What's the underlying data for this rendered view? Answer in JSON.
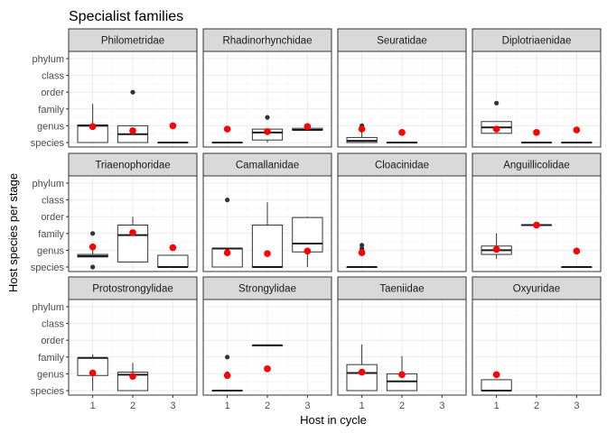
{
  "chart_data": {
    "type": "boxplot",
    "title": "Specialist families",
    "xlabel": "Host in cycle",
    "ylabel": "Host species per stage",
    "x_categories": [
      "1",
      "2",
      "3"
    ],
    "y_categories": [
      "species",
      "genus",
      "family",
      "order",
      "class",
      "phylum"
    ],
    "ylim": [
      1,
      6
    ],
    "colors": {
      "mean": "#ff0000",
      "outlier": "#333333",
      "strip": "#d9d9d9"
    },
    "panels": [
      {
        "name": "Philometridae",
        "boxes": [
          {
            "x": 1,
            "q1": 1,
            "median": 2,
            "q3": 2.05,
            "wlo": 1,
            "whi": 3.3,
            "mean": 1.95,
            "outliers": []
          },
          {
            "x": 2,
            "q1": 1,
            "median": 1.5,
            "q3": 2,
            "wlo": 1,
            "whi": 2,
            "mean": 1.7,
            "outliers": [
              4
            ]
          },
          {
            "x": 3,
            "q1": 1,
            "median": 1,
            "q3": 1,
            "wlo": 1,
            "whi": 1,
            "mean": 2,
            "outliers": []
          }
        ]
      },
      {
        "name": "Rhadinorhynchidae",
        "boxes": [
          {
            "x": 1,
            "q1": 1,
            "median": 1,
            "q3": 1,
            "wlo": 1,
            "whi": 1,
            "mean": 1.8,
            "outliers": []
          },
          {
            "x": 2,
            "q1": 1.15,
            "median": 1.6,
            "q3": 1.8,
            "wlo": 1,
            "whi": 1.8,
            "mean": 1.65,
            "outliers": [
              2.5
            ]
          },
          {
            "x": 3,
            "q1": 1.75,
            "median": 1.75,
            "q3": 1.85,
            "wlo": 1.75,
            "whi": 1.85,
            "mean": 1.95,
            "outliers": []
          }
        ]
      },
      {
        "name": "Seuratidae",
        "boxes": [
          {
            "x": 1,
            "q1": 1,
            "median": 1.1,
            "q3": 1.3,
            "wlo": 1,
            "whi": 1.8,
            "mean": 1.8,
            "outliers": [
              2
            ]
          },
          {
            "x": 2,
            "q1": 1,
            "median": 1,
            "q3": 1,
            "wlo": 1,
            "whi": 1,
            "mean": 1.6,
            "outliers": []
          }
        ]
      },
      {
        "name": "Diplotriaenidae",
        "boxes": [
          {
            "x": 1,
            "q1": 1.55,
            "median": 1.9,
            "q3": 2.25,
            "wlo": 1.55,
            "whi": 2.25,
            "mean": 1.8,
            "outliers": [
              3.35
            ]
          },
          {
            "x": 2,
            "q1": 1,
            "median": 1,
            "q3": 1,
            "wlo": 1,
            "whi": 1,
            "mean": 1.6,
            "outliers": []
          },
          {
            "x": 3,
            "q1": 1,
            "median": 1,
            "q3": 1,
            "wlo": 1,
            "whi": 1,
            "mean": 1.75,
            "outliers": []
          }
        ]
      },
      {
        "name": "Triaenophoridae",
        "boxes": [
          {
            "x": 1,
            "q1": 1.6,
            "median": 1.65,
            "q3": 1.75,
            "wlo": 1.6,
            "whi": 2,
            "mean": 2.2,
            "outliers": [
              1,
              3
            ]
          },
          {
            "x": 2,
            "q1": 1.3,
            "median": 2.9,
            "q3": 3.5,
            "wlo": 1.3,
            "whi": 4,
            "mean": 3.05,
            "outliers": []
          },
          {
            "x": 3,
            "q1": 1,
            "median": 1,
            "q3": 1.7,
            "wlo": 1,
            "whi": 1.7,
            "mean": 2.15,
            "outliers": []
          }
        ]
      },
      {
        "name": "Camallanidae",
        "boxes": [
          {
            "x": 1,
            "q1": 1,
            "median": 2.1,
            "q3": 2.1,
            "wlo": 1,
            "whi": 2.1,
            "mean": 1.85,
            "outliers": [
              5
            ]
          },
          {
            "x": 2,
            "q1": 1,
            "median": 1,
            "q3": 3.5,
            "wlo": 1,
            "whi": 4.85,
            "mean": 1.8,
            "outliers": []
          },
          {
            "x": 3,
            "q1": 1.9,
            "median": 2.4,
            "q3": 3.95,
            "wlo": 1,
            "whi": 4,
            "mean": 1.95,
            "outliers": []
          }
        ]
      },
      {
        "name": "Cloacinidae",
        "boxes": [
          {
            "x": 1,
            "q1": 1,
            "median": 1,
            "q3": 1,
            "wlo": 1,
            "whi": 1,
            "mean": 1.85,
            "outliers": [
              2,
              2.1,
              2.3
            ]
          }
        ]
      },
      {
        "name": "Anguillicolidae",
        "boxes": [
          {
            "x": 1,
            "q1": 1.75,
            "median": 2,
            "q3": 2.25,
            "wlo": 1.5,
            "whi": 3,
            "mean": 2.05,
            "outliers": []
          },
          {
            "x": 2,
            "q1": 3.5,
            "median": 3.5,
            "q3": 3.5,
            "wlo": 3.5,
            "whi": 3.5,
            "mean": 3.5,
            "outliers": []
          },
          {
            "x": 3,
            "q1": 1,
            "median": 1,
            "q3": 1,
            "wlo": 1,
            "whi": 1,
            "mean": 1.95,
            "outliers": []
          }
        ]
      },
      {
        "name": "Protostrongylidae",
        "boxes": [
          {
            "x": 1,
            "q1": 1.9,
            "median": 2.95,
            "q3": 2.95,
            "wlo": 1,
            "whi": 3.15,
            "mean": 2.05,
            "outliers": []
          },
          {
            "x": 2,
            "q1": 1,
            "median": 1.95,
            "q3": 2.1,
            "wlo": 1,
            "whi": 2.65,
            "mean": 1.85,
            "outliers": []
          }
        ]
      },
      {
        "name": "Strongylidae",
        "boxes": [
          {
            "x": 1,
            "q1": 1,
            "median": 1,
            "q3": 1,
            "wlo": 1,
            "whi": 1,
            "mean": 1.9,
            "outliers": [
              2,
              3
            ]
          },
          {
            "x": 2,
            "q1": 3.7,
            "median": 3.7,
            "q3": 3.7,
            "wlo": 3.7,
            "whi": 3.7,
            "mean": 2.3,
            "outliers": []
          }
        ]
      },
      {
        "name": "Taeniidae",
        "boxes": [
          {
            "x": 1,
            "q1": 1,
            "median": 2.05,
            "q3": 2.55,
            "wlo": 1,
            "whi": 3.75,
            "mean": 2.1,
            "outliers": []
          },
          {
            "x": 2,
            "q1": 1,
            "median": 1.55,
            "q3": 2,
            "wlo": 1,
            "whi": 3.05,
            "mean": 1.95,
            "outliers": []
          }
        ]
      },
      {
        "name": "Oxyuridae",
        "boxes": [
          {
            "x": 1,
            "q1": 1,
            "median": 1,
            "q3": 1.65,
            "wlo": 1,
            "whi": 1.65,
            "mean": 1.95,
            "outliers": []
          }
        ]
      }
    ]
  }
}
